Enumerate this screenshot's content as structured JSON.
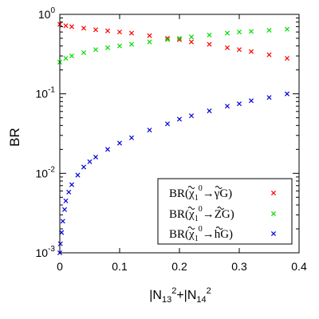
{
  "chart_data": {
    "type": "scatter",
    "xlabel": "|N13|2+|N14|2",
    "ylabel": "BR",
    "xlim": [
      0,
      0.4
    ],
    "ylim": [
      0.001,
      1
    ],
    "yscale": "log",
    "x_ticks": [
      0,
      0.1,
      0.2,
      0.3,
      0.4
    ],
    "x_tick_labels": [
      "0",
      "0.1",
      "0.2",
      "0.3",
      "0.4"
    ],
    "y_ticks": [
      0.001,
      0.01,
      0.1,
      1
    ],
    "y_tick_labels": [
      {
        "base": "10",
        "exp": "-3"
      },
      {
        "base": "10",
        "exp": "-2"
      },
      {
        "base": "10",
        "exp": "-1"
      },
      {
        "base": "10",
        "exp": "0"
      }
    ],
    "legend_position": "bottom-right",
    "series": [
      {
        "name": "BR(χ̃10→γG̃)",
        "color": "#ff0000",
        "marker": "x",
        "x": [
          0.0,
          0.01,
          0.02,
          0.04,
          0.06,
          0.08,
          0.1,
          0.12,
          0.15,
          0.18,
          0.2,
          0.22,
          0.25,
          0.28,
          0.3,
          0.32,
          0.35,
          0.38
        ],
        "y": [
          0.75,
          0.72,
          0.7,
          0.67,
          0.64,
          0.62,
          0.6,
          0.58,
          0.54,
          0.5,
          0.48,
          0.45,
          0.42,
          0.38,
          0.36,
          0.34,
          0.31,
          0.28
        ]
      },
      {
        "name": "BR(χ̃10→ZG̃)",
        "color": "#00dd00",
        "marker": "x",
        "x": [
          0.0,
          0.01,
          0.02,
          0.04,
          0.06,
          0.08,
          0.1,
          0.12,
          0.15,
          0.18,
          0.2,
          0.22,
          0.25,
          0.28,
          0.3,
          0.32,
          0.35,
          0.38
        ],
        "y": [
          0.25,
          0.28,
          0.3,
          0.33,
          0.36,
          0.38,
          0.4,
          0.42,
          0.45,
          0.48,
          0.5,
          0.52,
          0.55,
          0.58,
          0.6,
          0.61,
          0.63,
          0.65
        ]
      },
      {
        "name": "BR(χ̃10→hG̃)",
        "color": "#0000dd",
        "marker": "x",
        "x": [
          0.0,
          0.001,
          0.003,
          0.005,
          0.008,
          0.01,
          0.015,
          0.02,
          0.03,
          0.04,
          0.05,
          0.06,
          0.08,
          0.1,
          0.12,
          0.15,
          0.18,
          0.2,
          0.22,
          0.25,
          0.28,
          0.3,
          0.32,
          0.35,
          0.38
        ],
        "y": [
          0.001,
          0.0013,
          0.0018,
          0.0025,
          0.0035,
          0.0045,
          0.0058,
          0.0072,
          0.0095,
          0.012,
          0.014,
          0.016,
          0.02,
          0.024,
          0.028,
          0.035,
          0.042,
          0.048,
          0.053,
          0.061,
          0.07,
          0.075,
          0.082,
          0.09,
          0.1
        ]
      }
    ],
    "legend": [
      {
        "pre": "BR(",
        "chi": "χ",
        "sub": "1",
        "sup": "0",
        "arrow": "→",
        "boson": "γ",
        "grav": "G",
        "post": ")",
        "color": "#ff0000"
      },
      {
        "pre": "BR(",
        "chi": "χ",
        "sub": "1",
        "sup": "0",
        "arrow": "→",
        "boson": "Z",
        "grav": "G",
        "post": ")",
        "color": "#00dd00"
      },
      {
        "pre": "BR(",
        "chi": "χ",
        "sub": "1",
        "sup": "0",
        "arrow": "→",
        "boson": "h",
        "grav": "G",
        "post": ")",
        "color": "#0000dd"
      }
    ],
    "xlabel_parts": {
      "a": "|N",
      "a_sub": "13",
      "a_sup": "2",
      "mid": "+|N",
      "b_sub": "14",
      "b_sup": "2"
    }
  }
}
